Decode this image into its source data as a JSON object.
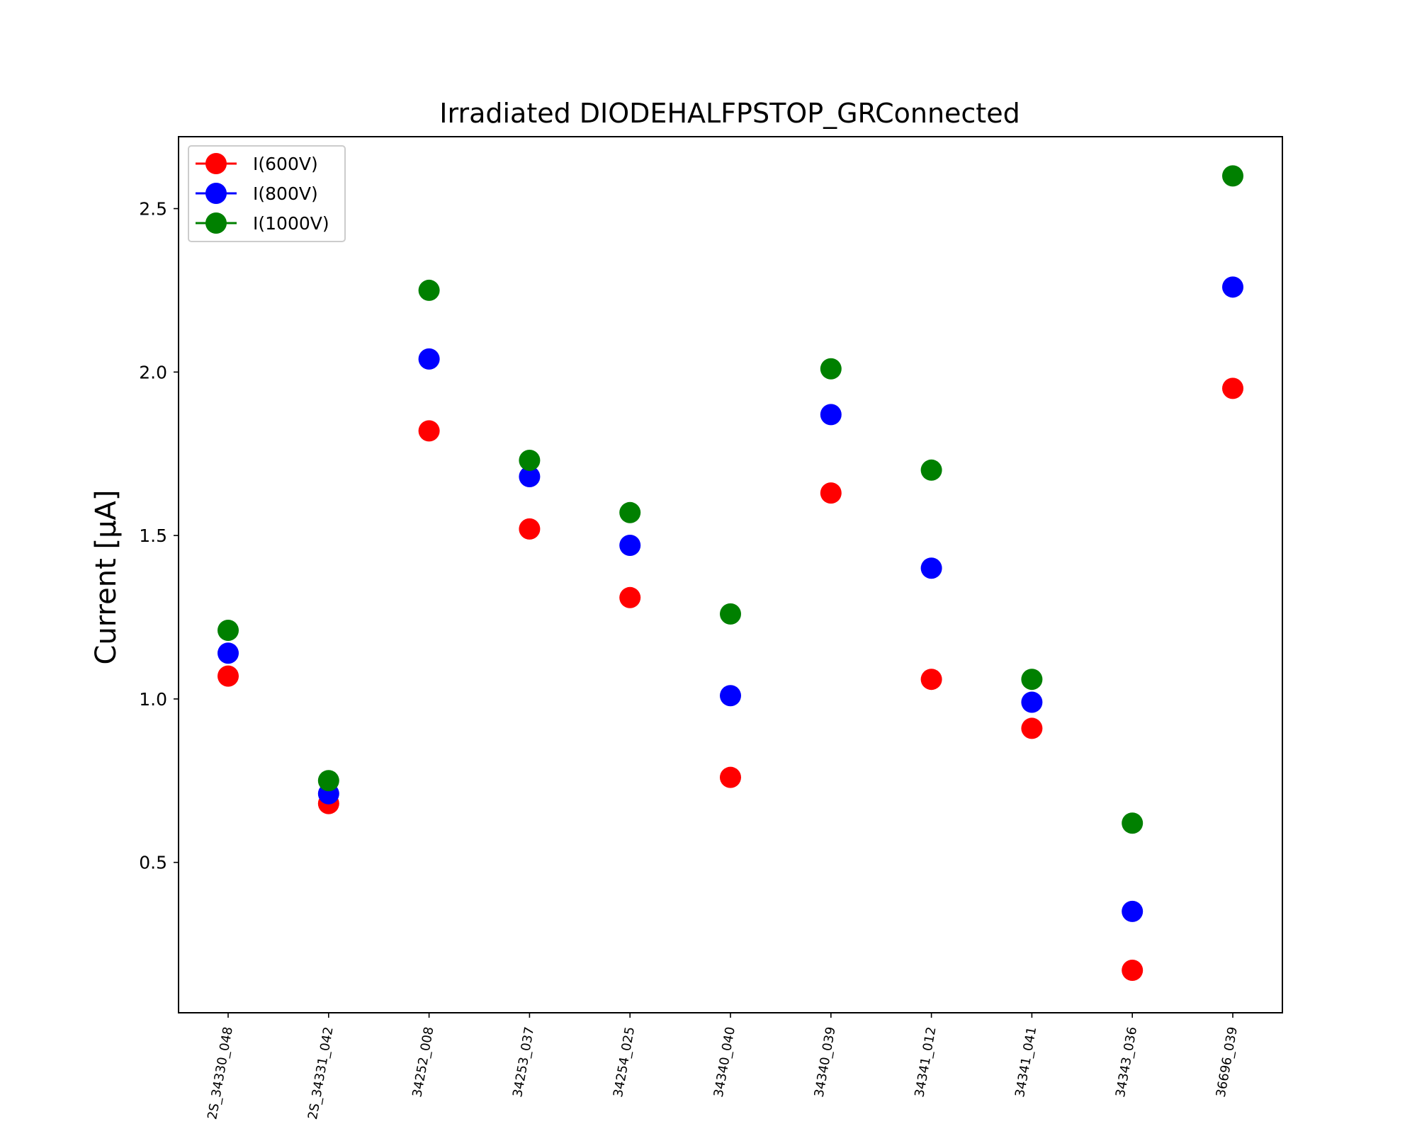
{
  "chart_data": {
    "type": "scatter",
    "title": "Irradiated DIODEHALFPSTOP_GRConnected",
    "xlabel": "",
    "ylabel": "Current [μA]",
    "categories": [
      "2S_34330_048",
      "2S_34331_042",
      "34252_008",
      "34253_037",
      "34254_025",
      "34340_040",
      "34340_039",
      "34341_012",
      "34341_041",
      "34343_036",
      "36696_039"
    ],
    "ylim": [
      0.04,
      2.72
    ],
    "yticks": [
      0.5,
      1.0,
      1.5,
      2.0,
      2.5
    ],
    "ytick_labels": [
      "0.5",
      "1.0",
      "1.5",
      "2.0",
      "2.5"
    ],
    "grid": false,
    "legend_position": "top-left",
    "series": [
      {
        "name": "I(600V)",
        "color": "#ff0000",
        "values": [
          1.07,
          0.68,
          1.82,
          1.52,
          1.31,
          0.76,
          1.63,
          1.06,
          0.91,
          0.17,
          1.95
        ]
      },
      {
        "name": "I(800V)",
        "color": "#0000ff",
        "values": [
          1.14,
          0.71,
          2.04,
          1.68,
          1.47,
          1.01,
          1.87,
          1.4,
          0.99,
          0.35,
          2.26
        ]
      },
      {
        "name": "I(1000V)",
        "color": "#008000",
        "values": [
          1.21,
          0.75,
          2.25,
          1.73,
          1.57,
          1.26,
          2.01,
          1.7,
          1.06,
          0.62,
          2.6
        ]
      }
    ]
  }
}
